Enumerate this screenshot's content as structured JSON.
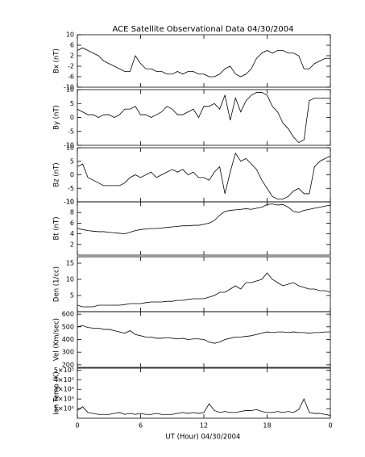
{
  "chart_data": [
    {
      "type": "line",
      "title": "ACE Satellite Observational Data   04/30/2004",
      "ylabel": "Bx (nT)",
      "x": [
        0,
        0.5,
        1,
        1.5,
        2,
        2.5,
        3,
        3.5,
        4,
        4.5,
        5,
        5.5,
        6,
        6.5,
        7,
        7.5,
        8,
        8.5,
        9,
        9.5,
        10,
        10.5,
        11,
        11.5,
        12,
        12.5,
        13,
        13.5,
        14,
        14.5,
        15,
        15.5,
        16,
        16.5,
        17,
        17.5,
        18,
        18.5,
        19,
        19.5,
        20,
        20.5,
        21,
        21.5,
        22,
        22.5,
        23,
        23.5,
        24
      ],
      "values": [
        4,
        5,
        4,
        3,
        2,
        0,
        -1,
        -2,
        -3,
        -4,
        -4,
        2,
        -1,
        -3,
        -3,
        -4,
        -4,
        -5,
        -5,
        -4,
        -5,
        -4,
        -4,
        -5,
        -5,
        -6,
        -6,
        -5,
        -3,
        -2,
        -5,
        -6,
        -5,
        -3,
        1,
        3,
        4,
        3,
        4,
        4,
        3,
        3,
        2,
        -3,
        -3,
        -1,
        0,
        1,
        1
      ],
      "color": "#000000",
      "xlim": [
        0,
        24
      ],
      "xticks": [
        0,
        6,
        12,
        18,
        {
          "value": 24,
          "label": "0"
        }
      ],
      "ylim": [
        -10,
        10
      ],
      "yticks": [
        -10,
        -6,
        -2,
        2,
        6,
        10
      ]
    },
    {
      "type": "line",
      "ylabel": "By (nT)",
      "x": [
        0,
        0.5,
        1,
        1.5,
        2,
        2.5,
        3,
        3.5,
        4,
        4.5,
        5,
        5.5,
        6,
        6.5,
        7,
        7.5,
        8,
        8.5,
        9,
        9.5,
        10,
        10.5,
        11,
        11.5,
        12,
        12.5,
        13,
        13.5,
        14,
        14.5,
        15,
        15.5,
        16,
        16.5,
        17,
        17.5,
        18,
        18.5,
        19,
        19.5,
        20,
        20.5,
        21,
        21.5,
        22,
        22.5,
        23,
        23.5,
        24
      ],
      "values": [
        3,
        2,
        1,
        1,
        0,
        1,
        1,
        0,
        1,
        3,
        3,
        4,
        1,
        1,
        0,
        1,
        2,
        4,
        3,
        1,
        1,
        2,
        3,
        0,
        4,
        4,
        5,
        3,
        8,
        -1,
        7,
        2,
        6,
        8,
        9,
        9,
        8,
        4,
        2,
        -2,
        -4,
        -7,
        -9,
        -8,
        6,
        7,
        7,
        7,
        7
      ],
      "color": "#000000",
      "xlim": [
        0,
        24
      ],
      "xticks": [
        0,
        6,
        12,
        18,
        {
          "value": 24,
          "label": "0"
        }
      ],
      "ylim": [
        -10,
        10
      ],
      "yticks": [
        -10,
        -5,
        0,
        5,
        10
      ]
    },
    {
      "type": "line",
      "ylabel": "Bz (nT)",
      "x": [
        0,
        0.5,
        1,
        1.5,
        2,
        2.5,
        3,
        3.5,
        4,
        4.5,
        5,
        5.5,
        6,
        6.5,
        7,
        7.5,
        8,
        8.5,
        9,
        9.5,
        10,
        10.5,
        11,
        11.5,
        12,
        12.5,
        13,
        13.5,
        14,
        14.5,
        15,
        15.5,
        16,
        16.5,
        17,
        17.5,
        18,
        18.5,
        19,
        19.5,
        20,
        20.5,
        21,
        21.5,
        22,
        22.5,
        23,
        23.5,
        24
      ],
      "values": [
        3,
        4,
        -1,
        -2,
        -3,
        -4,
        -4,
        -4,
        -4,
        -3,
        -1,
        0,
        -1,
        0,
        1,
        -1,
        0,
        1,
        2,
        1,
        2,
        0,
        1,
        -1,
        -1,
        -2,
        1,
        3,
        -7,
        1,
        8,
        5,
        6,
        4,
        2,
        -2,
        -5,
        -8,
        -9,
        -9,
        -8,
        -6,
        -5,
        -7,
        -7,
        3,
        5,
        6,
        7
      ],
      "color": "#000000",
      "xlim": [
        0,
        24
      ],
      "xticks": [
        0,
        6,
        12,
        18,
        {
          "value": 24,
          "label": "0"
        }
      ],
      "ylim": [
        -10,
        10
      ],
      "yticks": [
        -10,
        -5,
        0,
        5,
        10
      ]
    },
    {
      "type": "line",
      "ylabel": "Bt (nT)",
      "x": [
        0,
        0.5,
        1,
        1.5,
        2,
        2.5,
        3,
        3.5,
        4,
        4.5,
        5,
        5.5,
        6,
        6.5,
        7,
        7.5,
        8,
        8.5,
        9,
        9.5,
        10,
        10.5,
        11,
        11.5,
        12,
        12.5,
        13,
        13.5,
        14,
        14.5,
        15,
        15.5,
        16,
        16.5,
        17,
        17.5,
        18,
        18.5,
        19,
        19.5,
        20,
        20.5,
        21,
        21.5,
        22,
        22.5,
        23,
        23.5,
        24
      ],
      "values": [
        5,
        4.8,
        4.6,
        4.5,
        4.4,
        4.4,
        4.3,
        4.2,
        4.1,
        4.0,
        4.3,
        4.6,
        4.8,
        4.9,
        5.0,
        5.0,
        5.1,
        5.2,
        5.3,
        5.4,
        5.5,
        5.5,
        5.6,
        5.6,
        5.8,
        6.0,
        6.5,
        7.5,
        8.2,
        8.4,
        8.5,
        8.6,
        8.7,
        8.6,
        8.8,
        9.0,
        9.5,
        9.6,
        9.4,
        9.5,
        9.0,
        8.2,
        8.0,
        8.4,
        8.6,
        8.8,
        9.0,
        9.2,
        9.4
      ],
      "color": "#000000",
      "xlim": [
        0,
        24
      ],
      "xticks": [
        0,
        6,
        12,
        18,
        {
          "value": 24,
          "label": "0"
        }
      ],
      "ylim": [
        0,
        10
      ],
      "yticks": [
        2,
        4,
        6,
        8,
        10
      ]
    },
    {
      "type": "line",
      "ylabel": "Den (1/cc)",
      "x": [
        0,
        0.5,
        1,
        1.5,
        2,
        2.5,
        3,
        3.5,
        4,
        4.5,
        5,
        5.5,
        6,
        6.5,
        7,
        7.5,
        8,
        8.5,
        9,
        9.5,
        10,
        10.5,
        11,
        11.5,
        12,
        12.5,
        13,
        13.5,
        14,
        14.5,
        15,
        15.5,
        16,
        16.5,
        17,
        17.5,
        18,
        18.5,
        19,
        19.5,
        20,
        20.5,
        21,
        21.5,
        22,
        22.5,
        23,
        23.5,
        24
      ],
      "values": [
        2,
        1.5,
        1.5,
        1.5,
        2,
        2,
        2,
        2,
        2,
        2.2,
        2.5,
        2.5,
        2.5,
        2.8,
        3,
        3,
        3,
        3.2,
        3.2,
        3.5,
        3.5,
        3.8,
        4,
        4,
        4,
        4.5,
        5,
        6,
        6,
        7,
        8,
        7,
        9,
        9,
        9.5,
        10,
        12,
        10,
        9,
        8,
        8.5,
        9,
        8,
        7.5,
        7,
        7,
        6.5,
        6.5,
        6
      ],
      "color": "#000000",
      "xlim": [
        0,
        24
      ],
      "xticks": [
        0,
        6,
        12,
        18,
        {
          "value": 24,
          "label": "0"
        }
      ],
      "ylim": [
        0,
        17
      ],
      "yticks": [
        5,
        10,
        15
      ]
    },
    {
      "type": "line",
      "ylabel": "Vel (Km/sec)",
      "x": [
        0,
        0.5,
        1,
        1.5,
        2,
        2.5,
        3,
        3.5,
        4,
        4.5,
        5,
        5.5,
        6,
        6.5,
        7,
        7.5,
        8,
        8.5,
        9,
        9.5,
        10,
        10.5,
        11,
        11.5,
        12,
        12.5,
        13,
        13.5,
        14,
        14.5,
        15,
        15.5,
        16,
        16.5,
        17,
        17.5,
        18,
        18.5,
        19,
        19.5,
        20,
        20.5,
        21,
        21.5,
        22,
        22.5,
        23,
        23.5,
        24
      ],
      "values": [
        500,
        510,
        495,
        490,
        490,
        480,
        480,
        470,
        460,
        450,
        470,
        440,
        430,
        420,
        420,
        410,
        410,
        415,
        410,
        405,
        410,
        400,
        405,
        405,
        400,
        380,
        370,
        380,
        400,
        410,
        420,
        420,
        425,
        430,
        440,
        450,
        460,
        455,
        460,
        460,
        455,
        460,
        455,
        455,
        450,
        455,
        455,
        460,
        460
      ],
      "color": "#000000",
      "xlim": [
        0,
        24
      ],
      "xticks": [
        0,
        6,
        12,
        18,
        {
          "value": 24,
          "label": "0"
        }
      ],
      "ylim": [
        180,
        620
      ],
      "yticks": [
        200,
        300,
        400,
        500,
        600
      ]
    },
    {
      "type": "line",
      "ylabel": "Ion Temp (K)",
      "xlabel": "UT (Hour)   04/30/2004",
      "x": [
        0,
        0.5,
        1,
        1.5,
        2,
        2.5,
        3,
        3.5,
        4,
        4.5,
        5,
        5.5,
        6,
        6.5,
        7,
        7.5,
        8,
        8.5,
        9,
        9.5,
        10,
        10.5,
        11,
        11.5,
        12,
        12.5,
        13,
        13.5,
        14,
        14.5,
        15,
        15.5,
        16,
        16.5,
        17,
        17.5,
        18,
        18.5,
        19,
        19.5,
        20,
        20.5,
        21,
        21.5,
        22,
        22.5,
        23,
        23.5,
        24
      ],
      "values": [
        80000,
        120000,
        60000,
        50000,
        40000,
        40000,
        40000,
        50000,
        60000,
        40000,
        50000,
        40000,
        50000,
        40000,
        40000,
        50000,
        40000,
        40000,
        40000,
        50000,
        60000,
        50000,
        60000,
        50000,
        60000,
        150000,
        80000,
        60000,
        70000,
        60000,
        60000,
        70000,
        80000,
        80000,
        90000,
        70000,
        60000,
        60000,
        70000,
        60000,
        70000,
        60000,
        90000,
        200000,
        60000,
        50000,
        50000,
        40000,
        30000
      ],
      "color": "#000000",
      "xlim": [
        0,
        24
      ],
      "xticks": [
        0,
        6,
        12,
        18,
        {
          "value": 24,
          "label": "0"
        }
      ],
      "ylim": [
        0,
        520000
      ],
      "yticks": [
        {
          "value": 100000,
          "label": "1×10⁵"
        },
        {
          "value": 200000,
          "label": "2×10⁵"
        },
        {
          "value": 300000,
          "label": "3×10⁵"
        },
        {
          "value": 400000,
          "label": "4×10⁵"
        },
        {
          "value": 500000,
          "label": "5×10⁵"
        }
      ]
    }
  ]
}
